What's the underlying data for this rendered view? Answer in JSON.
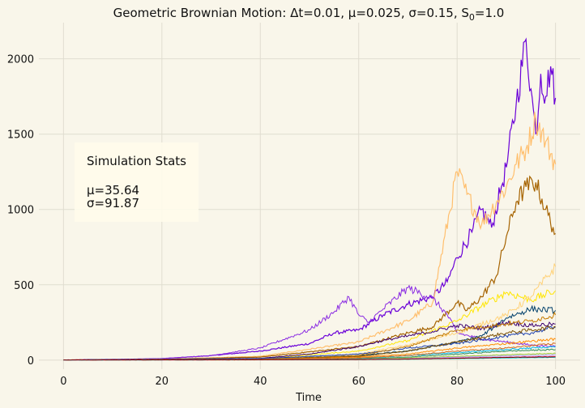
{
  "chart_data": {
    "type": "line",
    "title": "Geometric Brownian Motion: Δt=0.01, μ=0.025, σ=0.15, S",
    "title_sub": "0",
    "title_tail": "=1.0",
    "xlabel": "Time",
    "ylabel": "",
    "xlim": [
      -5,
      105
    ],
    "ylim": [
      -60,
      2240
    ],
    "x_ticks": [
      0,
      20,
      40,
      60,
      80,
      100
    ],
    "y_ticks": [
      0,
      500,
      1000,
      1500,
      2000
    ],
    "grid": true,
    "legend": "none",
    "stats_box": {
      "heading": "Simulation Stats",
      "mu_line": "μ=35.64",
      "sigma_line": "σ=91.87"
    },
    "series": [
      {
        "color": "#6a00d8",
        "values": [
          [
            0,
            1
          ],
          [
            10,
            3
          ],
          [
            20,
            10
          ],
          [
            30,
            30
          ],
          [
            40,
            60
          ],
          [
            50,
            110
          ],
          [
            55,
            180
          ],
          [
            60,
            200
          ],
          [
            65,
            300
          ],
          [
            70,
            370
          ],
          [
            75,
            420
          ],
          [
            78,
            520
          ],
          [
            80,
            680
          ],
          [
            83,
            850
          ],
          [
            85,
            1000
          ],
          [
            87,
            880
          ],
          [
            89,
            1150
          ],
          [
            90,
            1280
          ],
          [
            92,
            1700
          ],
          [
            94,
            2130
          ],
          [
            95,
            1800
          ],
          [
            96,
            1500
          ],
          [
            97,
            1900
          ],
          [
            98,
            1750
          ],
          [
            99,
            1950
          ],
          [
            100,
            1740
          ]
        ]
      },
      {
        "color": "#ffbf6e",
        "values": [
          [
            0,
            1
          ],
          [
            20,
            6
          ],
          [
            40,
            25
          ],
          [
            60,
            120
          ],
          [
            70,
            260
          ],
          [
            75,
            380
          ],
          [
            80,
            1250
          ],
          [
            82,
            1100
          ],
          [
            85,
            900
          ],
          [
            88,
            1050
          ],
          [
            90,
            1150
          ],
          [
            92,
            1300
          ],
          [
            94,
            1400
          ],
          [
            96,
            1600
          ],
          [
            98,
            1450
          ],
          [
            100,
            1300
          ]
        ]
      },
      {
        "color": "#a66300",
        "values": [
          [
            0,
            1
          ],
          [
            20,
            5
          ],
          [
            40,
            20
          ],
          [
            60,
            90
          ],
          [
            70,
            180
          ],
          [
            75,
            220
          ],
          [
            80,
            380
          ],
          [
            82,
            330
          ],
          [
            85,
            420
          ],
          [
            88,
            560
          ],
          [
            90,
            820
          ],
          [
            92,
            1050
          ],
          [
            94,
            1150
          ],
          [
            96,
            1180
          ],
          [
            98,
            1000
          ],
          [
            100,
            840
          ]
        ]
      },
      {
        "color": "#8a2be2",
        "values": [
          [
            0,
            1
          ],
          [
            20,
            10
          ],
          [
            30,
            30
          ],
          [
            40,
            80
          ],
          [
            50,
            200
          ],
          [
            55,
            320
          ],
          [
            58,
            420
          ],
          [
            60,
            300
          ],
          [
            62,
            250
          ],
          [
            65,
            340
          ],
          [
            70,
            480
          ],
          [
            75,
            410
          ],
          [
            78,
            300
          ],
          [
            80,
            180
          ],
          [
            85,
            140
          ],
          [
            90,
            120
          ],
          [
            95,
            100
          ],
          [
            100,
            90
          ]
        ]
      },
      {
        "color": "#ffe600",
        "values": [
          [
            0,
            1
          ],
          [
            40,
            10
          ],
          [
            60,
            60
          ],
          [
            70,
            130
          ],
          [
            80,
            260
          ],
          [
            85,
            360
          ],
          [
            90,
            450
          ],
          [
            95,
            400
          ],
          [
            100,
            460
          ]
        ]
      },
      {
        "color": "#ffd27a",
        "values": [
          [
            0,
            1
          ],
          [
            40,
            8
          ],
          [
            60,
            40
          ],
          [
            70,
            100
          ],
          [
            80,
            180
          ],
          [
            90,
            300
          ],
          [
            95,
            420
          ],
          [
            100,
            620
          ]
        ]
      },
      {
        "color": "#003f6b",
        "values": [
          [
            0,
            1
          ],
          [
            40,
            6
          ],
          [
            60,
            30
          ],
          [
            70,
            60
          ],
          [
            80,
            120
          ],
          [
            85,
            160
          ],
          [
            90,
            280
          ],
          [
            95,
            340
          ],
          [
            100,
            330
          ]
        ]
      },
      {
        "color": "#3d0070",
        "values": [
          [
            0,
            1
          ],
          [
            40,
            12
          ],
          [
            50,
            40
          ],
          [
            60,
            90
          ],
          [
            65,
            130
          ],
          [
            70,
            160
          ],
          [
            75,
            190
          ],
          [
            80,
            230
          ],
          [
            85,
            210
          ],
          [
            90,
            250
          ],
          [
            95,
            230
          ],
          [
            100,
            240
          ]
        ]
      },
      {
        "color": "#1b3fb0",
        "values": [
          [
            0,
            1
          ],
          [
            40,
            10
          ],
          [
            60,
            40
          ],
          [
            70,
            80
          ],
          [
            80,
            110
          ],
          [
            90,
            160
          ],
          [
            95,
            180
          ],
          [
            100,
            220
          ]
        ]
      },
      {
        "color": "#c47a00",
        "values": [
          [
            0,
            1
          ],
          [
            40,
            5
          ],
          [
            60,
            30
          ],
          [
            70,
            90
          ],
          [
            80,
            200
          ],
          [
            90,
            240
          ],
          [
            95,
            260
          ],
          [
            100,
            300
          ]
        ]
      },
      {
        "color": "#7b4f00",
        "values": [
          [
            0,
            1
          ],
          [
            40,
            5
          ],
          [
            60,
            25
          ],
          [
            70,
            60
          ],
          [
            80,
            120
          ],
          [
            90,
            180
          ],
          [
            100,
            220
          ]
        ]
      },
      {
        "color": "#ff8c00",
        "values": [
          [
            0,
            1
          ],
          [
            40,
            4
          ],
          [
            60,
            20
          ],
          [
            70,
            40
          ],
          [
            80,
            80
          ],
          [
            90,
            110
          ],
          [
            100,
            140
          ]
        ]
      },
      {
        "color": "#00b7eb",
        "values": [
          [
            0,
            1
          ],
          [
            40,
            3
          ],
          [
            60,
            10
          ],
          [
            70,
            30
          ],
          [
            80,
            50
          ],
          [
            90,
            70
          ],
          [
            100,
            90
          ]
        ]
      },
      {
        "color": "#2e8b57",
        "values": [
          [
            0,
            1
          ],
          [
            40,
            3
          ],
          [
            60,
            8
          ],
          [
            70,
            20
          ],
          [
            80,
            40
          ],
          [
            90,
            60
          ],
          [
            100,
            70
          ]
        ]
      },
      {
        "color": "#d2691e",
        "values": [
          [
            0,
            1
          ],
          [
            40,
            4
          ],
          [
            60,
            15
          ],
          [
            70,
            30
          ],
          [
            80,
            60
          ],
          [
            90,
            80
          ],
          [
            100,
            110
          ]
        ]
      },
      {
        "color": "#9acd32",
        "values": [
          [
            0,
            1
          ],
          [
            40,
            2
          ],
          [
            60,
            6
          ],
          [
            70,
            14
          ],
          [
            80,
            25
          ],
          [
            90,
            35
          ],
          [
            100,
            45
          ]
        ]
      },
      {
        "color": "#b0a0ff",
        "values": [
          [
            0,
            1
          ],
          [
            40,
            2
          ],
          [
            60,
            5
          ],
          [
            70,
            10
          ],
          [
            80,
            20
          ],
          [
            90,
            28
          ],
          [
            100,
            35
          ]
        ]
      },
      {
        "color": "#ff69b4",
        "values": [
          [
            0,
            1
          ],
          [
            40,
            2
          ],
          [
            60,
            4
          ],
          [
            70,
            8
          ],
          [
            80,
            14
          ],
          [
            90,
            20
          ],
          [
            100,
            25
          ]
        ]
      },
      {
        "color": "#00ced1",
        "values": [
          [
            0,
            1
          ],
          [
            40,
            2
          ],
          [
            60,
            3
          ],
          [
            70,
            6
          ],
          [
            80,
            10
          ],
          [
            90,
            14
          ],
          [
            100,
            18
          ]
        ]
      },
      {
        "color": "#8b0000",
        "values": [
          [
            0,
            1
          ],
          [
            40,
            2
          ],
          [
            60,
            4
          ],
          [
            70,
            7
          ],
          [
            80,
            12
          ],
          [
            90,
            18
          ],
          [
            100,
            22
          ]
        ]
      }
    ]
  }
}
